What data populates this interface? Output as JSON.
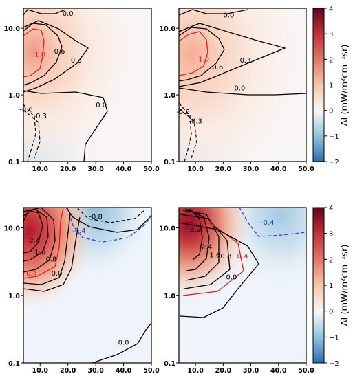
{
  "chart_data": {
    "type": "heatmap",
    "colormap": "RdBu_r",
    "x_ticks": [
      "10.0",
      "20.0",
      "30.0",
      "40.0",
      "50.0"
    ],
    "y_ticks": [
      "0.1",
      "1.0",
      "10.0"
    ],
    "xlim": [
      4,
      50
    ],
    "ylim": [
      0.1,
      20
    ],
    "yscale": "log",
    "colorbar": {
      "label": "ΔI (mW/m²cm⁻¹sr)",
      "ticks": [
        "4",
        "3",
        "2",
        "1",
        "0",
        "−1",
        "−2"
      ],
      "range": [
        -2,
        4
      ]
    },
    "panels": [
      {
        "contour_labels": [
          {
            "text": "0.0",
            "x": 20,
            "y": 16.5,
            "color": "#000000"
          },
          {
            "text": "1.0",
            "x": 10,
            "y": 4.0,
            "color": "#e31a1c"
          },
          {
            "text": "0.6",
            "x": 17,
            "y": 4.5,
            "color": "#000000"
          },
          {
            "text": "0.3",
            "x": 23,
            "y": 3.3,
            "color": "#000000"
          },
          {
            "text": "-0.6",
            "x": 5,
            "y": 0.6,
            "color": "#000000"
          },
          {
            "text": "-0.3",
            "x": 10,
            "y": 0.48,
            "color": "#000000"
          },
          {
            "text": "0.0",
            "x": 32,
            "y": 0.7,
            "color": "#000000"
          }
        ]
      },
      {
        "contour_labels": [
          {
            "text": "0.0",
            "x": 22,
            "y": 15.5,
            "color": "#000000"
          },
          {
            "text": "1.0",
            "x": 13,
            "y": 3.4,
            "color": "#e31a1c"
          },
          {
            "text": "0.6",
            "x": 18,
            "y": 2.6,
            "color": "#000000"
          },
          {
            "text": "0.3",
            "x": 28,
            "y": 3.3,
            "color": "#000000"
          },
          {
            "text": "0.0",
            "x": 26,
            "y": 1.25,
            "color": "#000000"
          },
          {
            "text": "-0.6",
            "x": 5.5,
            "y": 0.55,
            "color": "#000000"
          },
          {
            "text": "-0.3",
            "x": 10,
            "y": 0.4,
            "color": "#000000"
          }
        ]
      },
      {
        "contour_labels": [
          {
            "text": "-0.8",
            "x": 30,
            "y": 14.5,
            "color": "#000000"
          },
          {
            "text": "-0.4",
            "x": 24,
            "y": 9.0,
            "color": "#1f3fd8"
          },
          {
            "text": "2.4",
            "x": 8,
            "y": 6.4,
            "color": "#000000"
          },
          {
            "text": "1.6",
            "x": 10,
            "y": 4.3,
            "color": "#000000"
          },
          {
            "text": "0.8",
            "x": 14,
            "y": 3.4,
            "color": "#000000"
          },
          {
            "text": "0.4",
            "x": 7,
            "y": 2.1,
            "color": "#e31a1c"
          },
          {
            "text": "0.0",
            "x": 16,
            "y": 2.1,
            "color": "#000000"
          },
          {
            "text": "0.0",
            "x": 40,
            "y": 0.2,
            "color": "#000000"
          }
        ]
      },
      {
        "contour_labels": [
          {
            "text": "3.2",
            "x": 10,
            "y": 9.5,
            "color": "#000000"
          },
          {
            "text": "2.4",
            "x": 14,
            "y": 5.2,
            "color": "#000000"
          },
          {
            "text": "1.6",
            "x": 17,
            "y": 3.9,
            "color": "#000000"
          },
          {
            "text": "0.8",
            "x": 21,
            "y": 3.8,
            "color": "#000000"
          },
          {
            "text": "0.4",
            "x": 27,
            "y": 3.8,
            "color": "#e31a1c"
          },
          {
            "text": "0.0",
            "x": 23,
            "y": 1.85,
            "color": "#000000"
          },
          {
            "text": "-0.4",
            "x": 36,
            "y": 12,
            "color": "#1f3fd8"
          }
        ]
      }
    ]
  }
}
